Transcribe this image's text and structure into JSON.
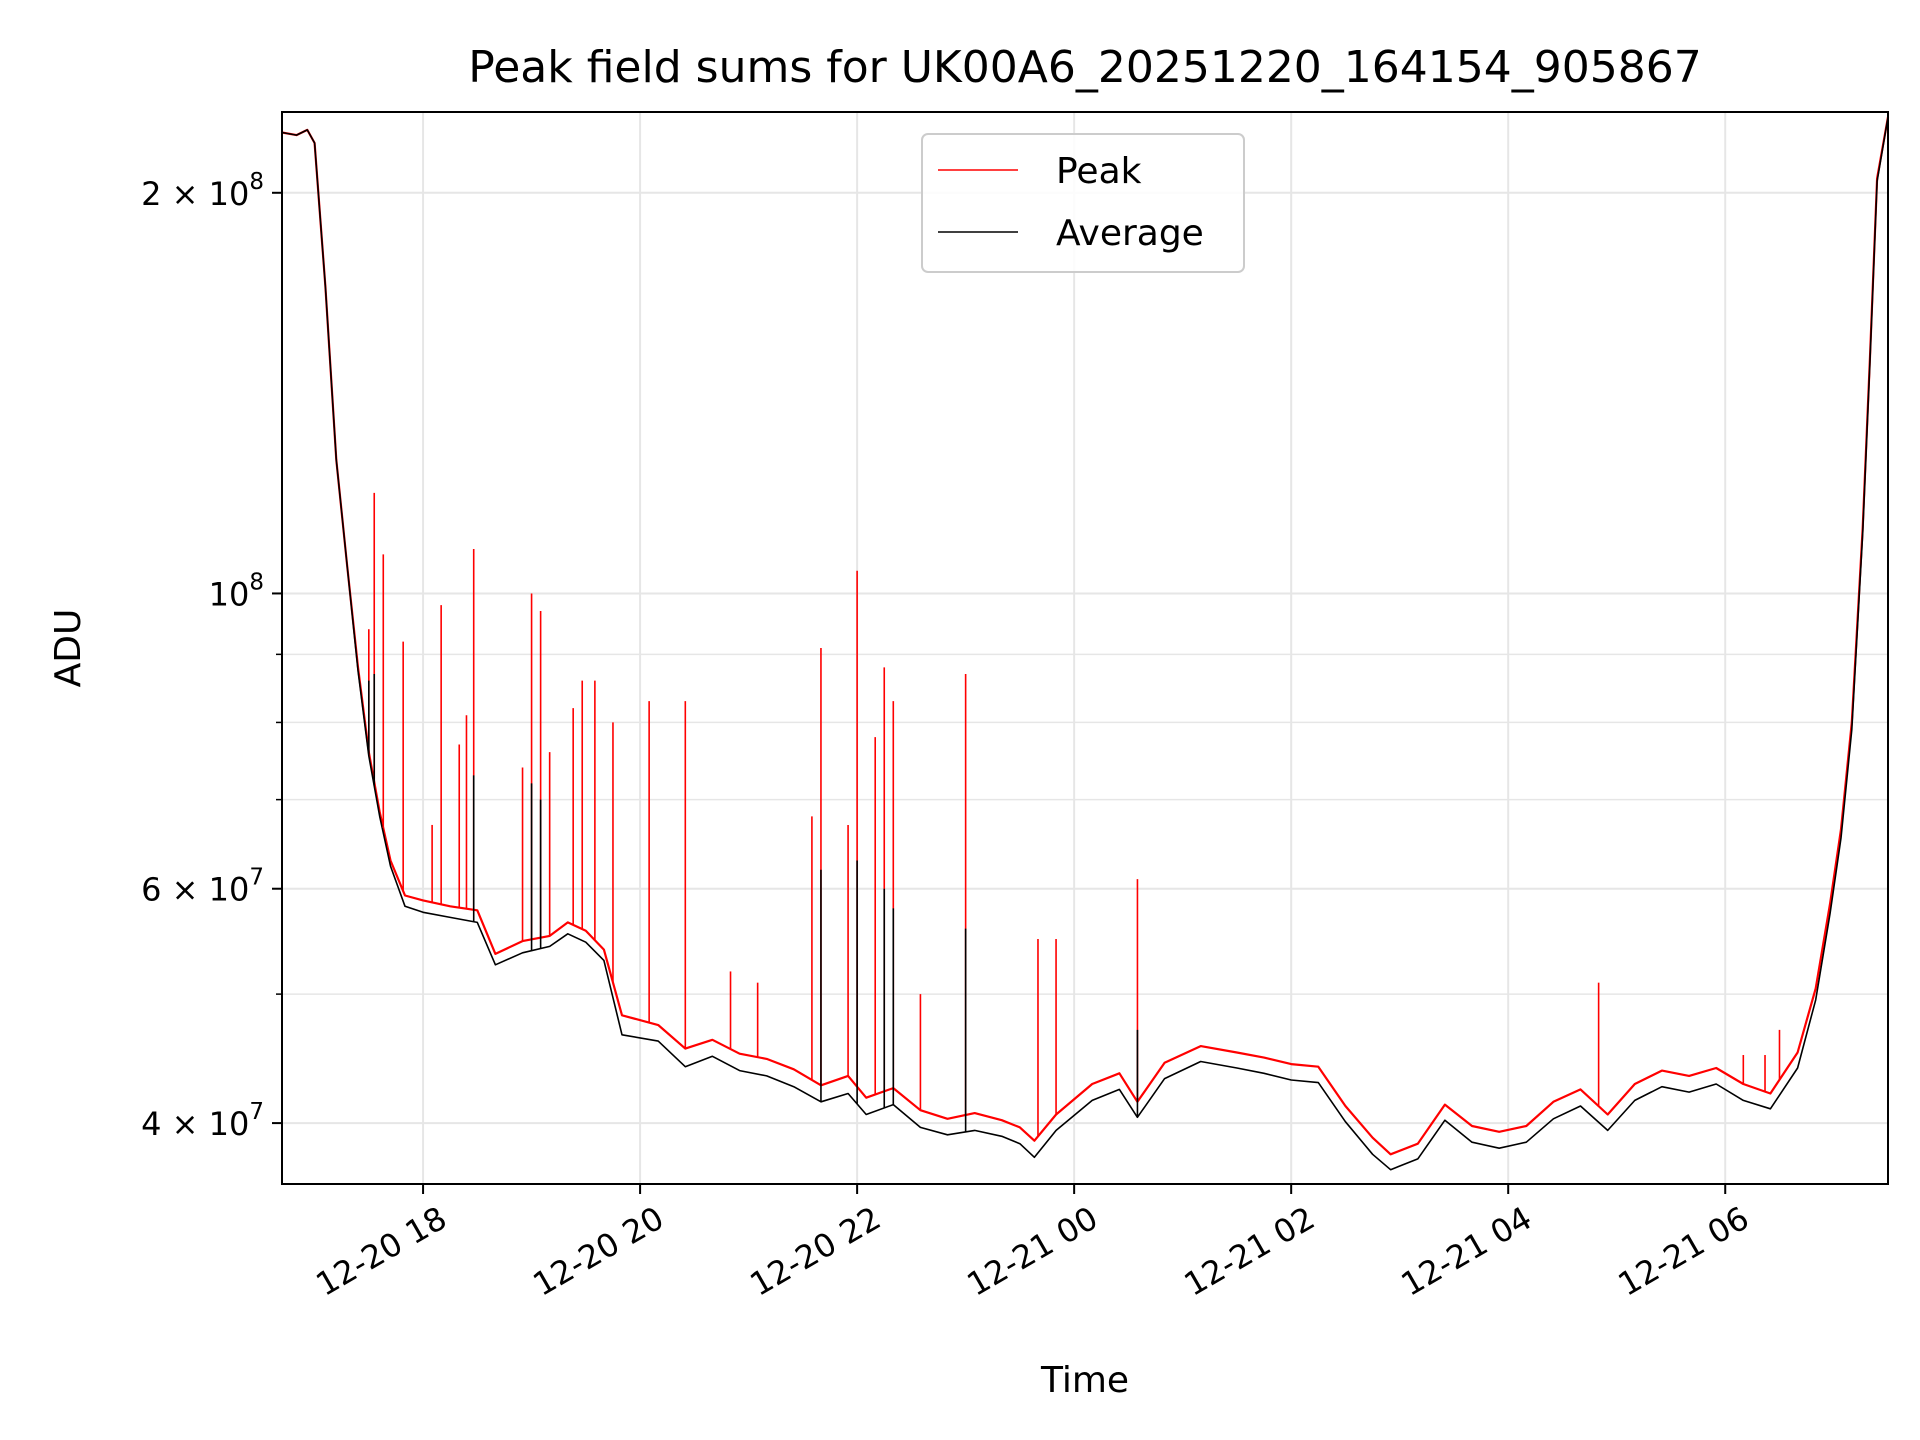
{
  "chart_data": {
    "type": "line",
    "title": "Peak field sums for UK00A6_20251220_164154_905867",
    "xlabel": "Time",
    "ylabel": "ADU",
    "yscale": "log",
    "xlim": [
      "2025-12-20T16:42",
      "2025-12-21T07:30"
    ],
    "ylim": [
      36000000,
      230000000
    ],
    "grid": true,
    "legend": {
      "placement": "top-center"
    },
    "x_ticks": [
      {
        "t": "2025-12-20T18:00",
        "label": "12-20 18"
      },
      {
        "t": "2025-12-20T20:00",
        "label": "12-20 20"
      },
      {
        "t": "2025-12-20T22:00",
        "label": "12-20 22"
      },
      {
        "t": "2025-12-21T00:00",
        "label": "12-21 00"
      },
      {
        "t": "2025-12-21T02:00",
        "label": "12-21 02"
      },
      {
        "t": "2025-12-21T04:00",
        "label": "12-21 04"
      },
      {
        "t": "2025-12-21T06:00",
        "label": "12-21 06"
      }
    ],
    "y_major_ticks": [
      {
        "v": 40000000,
        "base": "4 × 10",
        "exp": "7"
      },
      {
        "v": 60000000,
        "base": "6 × 10",
        "exp": "7"
      },
      {
        "v": 100000000,
        "base": "10",
        "exp": "8"
      },
      {
        "v": 200000000,
        "base": "2 × 10",
        "exp": "8"
      }
    ],
    "y_minor_ticks": [
      50000000,
      70000000,
      80000000,
      90000000
    ],
    "series": [
      {
        "name": "Peak",
        "color": "#ff0000",
        "points": [
          [
            "2025-12-20T16:42",
            222000000
          ],
          [
            "2025-12-20T16:50",
            221000000
          ],
          [
            "2025-12-20T16:56",
            223000000
          ],
          [
            "2025-12-20T17:00",
            218000000
          ],
          [
            "2025-12-20T17:06",
            170000000
          ],
          [
            "2025-12-20T17:12",
            126000000
          ],
          [
            "2025-12-20T17:18",
            105000000
          ],
          [
            "2025-12-20T17:24",
            88000000
          ],
          [
            "2025-12-20T17:30",
            76000000
          ],
          [
            "2025-12-20T17:36",
            68500000
          ],
          [
            "2025-12-20T17:42",
            63000000
          ],
          [
            "2025-12-20T17:50",
            59300000
          ],
          [
            "2025-12-20T18:00",
            58800000
          ],
          [
            "2025-12-20T18:15",
            58200000
          ],
          [
            "2025-12-20T18:30",
            57800000
          ],
          [
            "2025-12-20T18:40",
            53600000
          ],
          [
            "2025-12-20T18:55",
            54800000
          ],
          [
            "2025-12-20T19:10",
            55300000
          ],
          [
            "2025-12-20T19:20",
            56600000
          ],
          [
            "2025-12-20T19:30",
            55800000
          ],
          [
            "2025-12-20T19:40",
            54000000
          ],
          [
            "2025-12-20T19:50",
            48200000
          ],
          [
            "2025-12-20T20:10",
            47400000
          ],
          [
            "2025-12-20T20:25",
            45500000
          ],
          [
            "2025-12-20T20:40",
            46200000
          ],
          [
            "2025-12-20T20:55",
            45100000
          ],
          [
            "2025-12-20T21:10",
            44700000
          ],
          [
            "2025-12-20T21:25",
            43900000
          ],
          [
            "2025-12-20T21:40",
            42700000
          ],
          [
            "2025-12-20T21:55",
            43400000
          ],
          [
            "2025-12-20T22:05",
            41800000
          ],
          [
            "2025-12-20T22:20",
            42500000
          ],
          [
            "2025-12-20T22:35",
            40900000
          ],
          [
            "2025-12-20T22:50",
            40300000
          ],
          [
            "2025-12-20T23:05",
            40700000
          ],
          [
            "2025-12-20T23:20",
            40200000
          ],
          [
            "2025-12-20T23:30",
            39700000
          ],
          [
            "2025-12-20T23:38",
            38800000
          ],
          [
            "2025-12-20T23:50",
            40600000
          ],
          [
            "2025-12-21T00:10",
            42800000
          ],
          [
            "2025-12-21T00:25",
            43600000
          ],
          [
            "2025-12-21T00:35",
            41500000
          ],
          [
            "2025-12-21T00:50",
            44400000
          ],
          [
            "2025-12-21T01:10",
            45700000
          ],
          [
            "2025-12-21T01:30",
            45200000
          ],
          [
            "2025-12-21T01:45",
            44800000
          ],
          [
            "2025-12-21T02:00",
            44300000
          ],
          [
            "2025-12-21T02:15",
            44100000
          ],
          [
            "2025-12-21T02:30",
            41200000
          ],
          [
            "2025-12-21T02:45",
            39000000
          ],
          [
            "2025-12-21T02:55",
            37900000
          ],
          [
            "2025-12-21T03:10",
            38600000
          ],
          [
            "2025-12-21T03:25",
            41300000
          ],
          [
            "2025-12-21T03:40",
            39800000
          ],
          [
            "2025-12-21T03:55",
            39400000
          ],
          [
            "2025-12-21T04:10",
            39800000
          ],
          [
            "2025-12-21T04:25",
            41500000
          ],
          [
            "2025-12-21T04:40",
            42400000
          ],
          [
            "2025-12-21T04:55",
            40600000
          ],
          [
            "2025-12-21T05:10",
            42800000
          ],
          [
            "2025-12-21T05:25",
            43800000
          ],
          [
            "2025-12-21T05:40",
            43400000
          ],
          [
            "2025-12-21T05:55",
            44000000
          ],
          [
            "2025-12-21T06:10",
            42800000
          ],
          [
            "2025-12-21T06:25",
            42100000
          ],
          [
            "2025-12-21T06:40",
            45200000
          ],
          [
            "2025-12-21T06:50",
            50500000
          ],
          [
            "2025-12-21T06:58",
            58500000
          ],
          [
            "2025-12-21T07:04",
            66500000
          ],
          [
            "2025-12-21T07:10",
            80000000
          ],
          [
            "2025-12-21T07:16",
            112000000
          ],
          [
            "2025-12-21T07:20",
            150000000
          ],
          [
            "2025-12-21T07:24",
            205000000
          ],
          [
            "2025-12-21T07:30",
            228000000
          ]
        ],
        "spikes": [
          [
            "2025-12-20T17:30",
            94000000
          ],
          [
            "2025-12-20T17:33",
            119000000
          ],
          [
            "2025-12-20T17:38",
            107000000
          ],
          [
            "2025-12-20T17:49",
            92000000
          ],
          [
            "2025-12-20T18:05",
            67000000
          ],
          [
            "2025-12-20T18:10",
            98000000
          ],
          [
            "2025-12-20T18:20",
            77000000
          ],
          [
            "2025-12-20T18:24",
            81000000
          ],
          [
            "2025-12-20T18:28",
            108000000
          ],
          [
            "2025-12-20T18:55",
            74000000
          ],
          [
            "2025-12-20T19:00",
            100000000
          ],
          [
            "2025-12-20T19:05",
            97000000
          ],
          [
            "2025-12-20T19:10",
            76000000
          ],
          [
            "2025-12-20T19:23",
            82000000
          ],
          [
            "2025-12-20T19:28",
            86000000
          ],
          [
            "2025-12-20T19:35",
            86000000
          ],
          [
            "2025-12-20T19:45",
            80000000
          ],
          [
            "2025-12-20T20:05",
            83000000
          ],
          [
            "2025-12-20T20:25",
            83000000
          ],
          [
            "2025-12-20T20:50",
            52000000
          ],
          [
            "2025-12-20T21:05",
            51000000
          ],
          [
            "2025-12-20T21:35",
            68000000
          ],
          [
            "2025-12-20T21:40",
            91000000
          ],
          [
            "2025-12-20T21:55",
            67000000
          ],
          [
            "2025-12-20T22:00",
            104000000
          ],
          [
            "2025-12-20T22:10",
            78000000
          ],
          [
            "2025-12-20T22:15",
            88000000
          ],
          [
            "2025-12-20T22:20",
            83000000
          ],
          [
            "2025-12-20T22:35",
            50000000
          ],
          [
            "2025-12-20T23:00",
            87000000
          ],
          [
            "2025-12-20T23:40",
            55000000
          ],
          [
            "2025-12-20T23:50",
            55000000
          ],
          [
            "2025-12-21T00:35",
            61000000
          ],
          [
            "2025-12-21T04:50",
            51000000
          ],
          [
            "2025-12-21T06:10",
            45000000
          ],
          [
            "2025-12-21T06:22",
            45000000
          ],
          [
            "2025-12-21T06:30",
            47000000
          ]
        ]
      },
      {
        "name": "Average",
        "color": "#000000",
        "points": [
          [
            "2025-12-20T16:42",
            222000000
          ],
          [
            "2025-12-20T16:50",
            221000000
          ],
          [
            "2025-12-20T16:56",
            223000000
          ],
          [
            "2025-12-20T17:00",
            218000000
          ],
          [
            "2025-12-20T17:06",
            170000000
          ],
          [
            "2025-12-20T17:12",
            126000000
          ],
          [
            "2025-12-20T17:18",
            105000000
          ],
          [
            "2025-12-20T17:24",
            87500000
          ],
          [
            "2025-12-20T17:30",
            75500000
          ],
          [
            "2025-12-20T17:36",
            68000000
          ],
          [
            "2025-12-20T17:42",
            62400000
          ],
          [
            "2025-12-20T17:50",
            58200000
          ],
          [
            "2025-12-20T18:00",
            57600000
          ],
          [
            "2025-12-20T18:15",
            57100000
          ],
          [
            "2025-12-20T18:30",
            56600000
          ],
          [
            "2025-12-20T18:40",
            52600000
          ],
          [
            "2025-12-20T18:55",
            53700000
          ],
          [
            "2025-12-20T19:10",
            54300000
          ],
          [
            "2025-12-20T19:20",
            55500000
          ],
          [
            "2025-12-20T19:30",
            54700000
          ],
          [
            "2025-12-20T19:40",
            53000000
          ],
          [
            "2025-12-20T19:50",
            46600000
          ],
          [
            "2025-12-20T20:10",
            46100000
          ],
          [
            "2025-12-20T20:25",
            44100000
          ],
          [
            "2025-12-20T20:40",
            44900000
          ],
          [
            "2025-12-20T20:55",
            43800000
          ],
          [
            "2025-12-20T21:10",
            43400000
          ],
          [
            "2025-12-20T21:25",
            42600000
          ],
          [
            "2025-12-20T21:40",
            41500000
          ],
          [
            "2025-12-20T21:55",
            42100000
          ],
          [
            "2025-12-20T22:05",
            40600000
          ],
          [
            "2025-12-20T22:20",
            41300000
          ],
          [
            "2025-12-20T22:35",
            39700000
          ],
          [
            "2025-12-20T22:50",
            39200000
          ],
          [
            "2025-12-20T23:05",
            39500000
          ],
          [
            "2025-12-20T23:20",
            39100000
          ],
          [
            "2025-12-20T23:30",
            38600000
          ],
          [
            "2025-12-20T23:38",
            37700000
          ],
          [
            "2025-12-20T23:50",
            39500000
          ],
          [
            "2025-12-21T00:10",
            41600000
          ],
          [
            "2025-12-21T00:25",
            42400000
          ],
          [
            "2025-12-21T00:35",
            40400000
          ],
          [
            "2025-12-21T00:50",
            43200000
          ],
          [
            "2025-12-21T01:10",
            44500000
          ],
          [
            "2025-12-21T01:30",
            44000000
          ],
          [
            "2025-12-21T01:45",
            43600000
          ],
          [
            "2025-12-21T02:00",
            43100000
          ],
          [
            "2025-12-21T02:15",
            42900000
          ],
          [
            "2025-12-21T02:30",
            40100000
          ],
          [
            "2025-12-21T02:45",
            37900000
          ],
          [
            "2025-12-21T02:55",
            36900000
          ],
          [
            "2025-12-21T03:10",
            37600000
          ],
          [
            "2025-12-21T03:25",
            40200000
          ],
          [
            "2025-12-21T03:40",
            38700000
          ],
          [
            "2025-12-21T03:55",
            38300000
          ],
          [
            "2025-12-21T04:10",
            38700000
          ],
          [
            "2025-12-21T04:25",
            40300000
          ],
          [
            "2025-12-21T04:40",
            41200000
          ],
          [
            "2025-12-21T04:55",
            39500000
          ],
          [
            "2025-12-21T05:10",
            41600000
          ],
          [
            "2025-12-21T05:25",
            42600000
          ],
          [
            "2025-12-21T05:40",
            42200000
          ],
          [
            "2025-12-21T05:55",
            42800000
          ],
          [
            "2025-12-21T06:10",
            41600000
          ],
          [
            "2025-12-21T06:25",
            41000000
          ],
          [
            "2025-12-21T06:40",
            44000000
          ],
          [
            "2025-12-21T06:50",
            49500000
          ],
          [
            "2025-12-21T06:58",
            57500000
          ],
          [
            "2025-12-21T07:04",
            65500000
          ],
          [
            "2025-12-21T07:10",
            79000000
          ],
          [
            "2025-12-21T07:16",
            111000000
          ],
          [
            "2025-12-21T07:20",
            149000000
          ],
          [
            "2025-12-21T07:24",
            204000000
          ],
          [
            "2025-12-21T07:30",
            228000000
          ]
        ],
        "spikes": [
          [
            "2025-12-20T17:30",
            86000000
          ],
          [
            "2025-12-20T17:33",
            87000000
          ],
          [
            "2025-12-20T18:28",
            73000000
          ],
          [
            "2025-12-20T19:00",
            72000000
          ],
          [
            "2025-12-20T19:05",
            70000000
          ],
          [
            "2025-12-20T21:40",
            62000000
          ],
          [
            "2025-12-20T22:00",
            63000000
          ],
          [
            "2025-12-20T22:15",
            60000000
          ],
          [
            "2025-12-20T22:20",
            58000000
          ],
          [
            "2025-12-20T23:00",
            56000000
          ],
          [
            "2025-12-21T00:35",
            47000000
          ]
        ]
      }
    ]
  }
}
